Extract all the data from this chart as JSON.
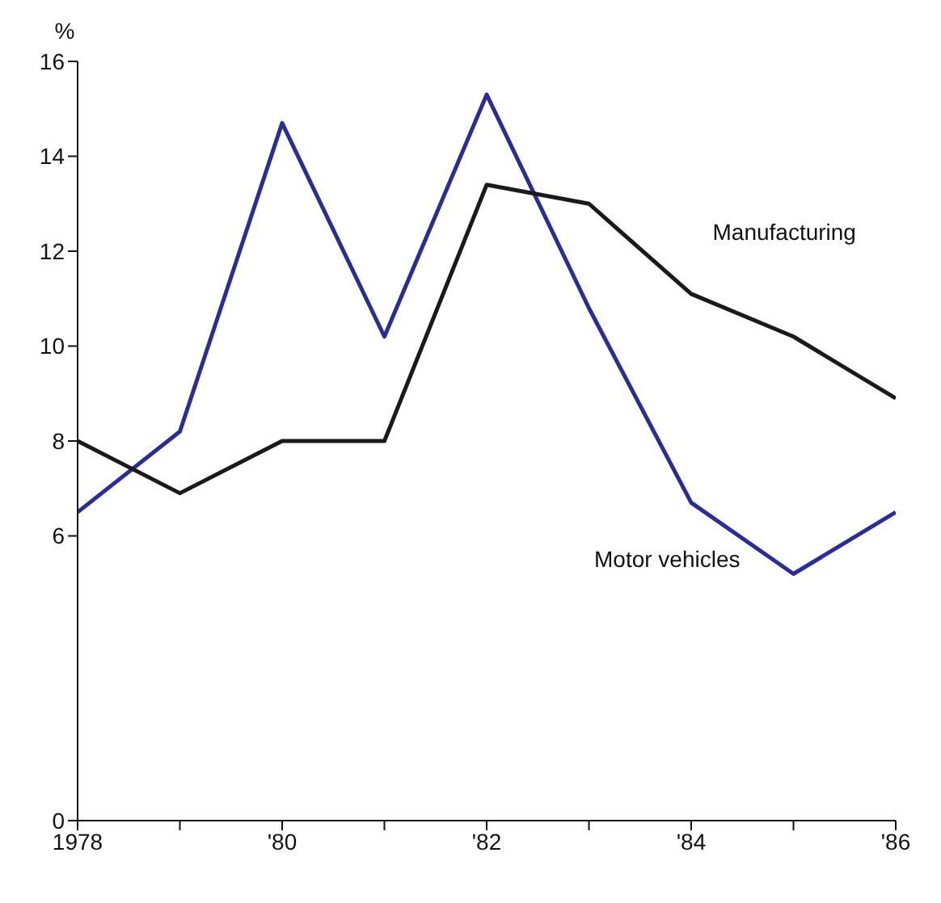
{
  "chart_data": {
    "type": "line",
    "ylabel": "%",
    "x": [
      1978,
      1979,
      1980,
      1981,
      1982,
      1983,
      1984,
      1985,
      1986
    ],
    "series": [
      {
        "name": "Motor vehicles",
        "color": "#2b2b9a",
        "values": [
          6.5,
          8.2,
          14.7,
          10.2,
          15.3,
          10.8,
          6.7,
          5.2,
          6.5
        ]
      },
      {
        "name": "Manufacturing",
        "color": "#1a1a1a",
        "values": [
          8.0,
          6.9,
          8.0,
          8.0,
          13.4,
          13.0,
          11.1,
          10.2,
          8.9
        ]
      }
    ],
    "xlim": [
      1978,
      1986
    ],
    "xticks": [
      {
        "value": 1978,
        "label": "1978"
      },
      {
        "value": 1979,
        "label": null
      },
      {
        "value": 1980,
        "label": "'80"
      },
      {
        "value": 1981,
        "label": null
      },
      {
        "value": 1982,
        "label": "'82"
      },
      {
        "value": 1983,
        "label": null
      },
      {
        "value": 1984,
        "label": "'84"
      },
      {
        "value": 1985,
        "label": null
      },
      {
        "value": 1986,
        "label": "'86"
      }
    ],
    "ylim": [
      0,
      16
    ],
    "yticks": [
      0,
      6,
      8,
      10,
      12,
      14,
      16
    ],
    "grid": false,
    "legend": false,
    "marker": "none",
    "line_style": "solid"
  }
}
